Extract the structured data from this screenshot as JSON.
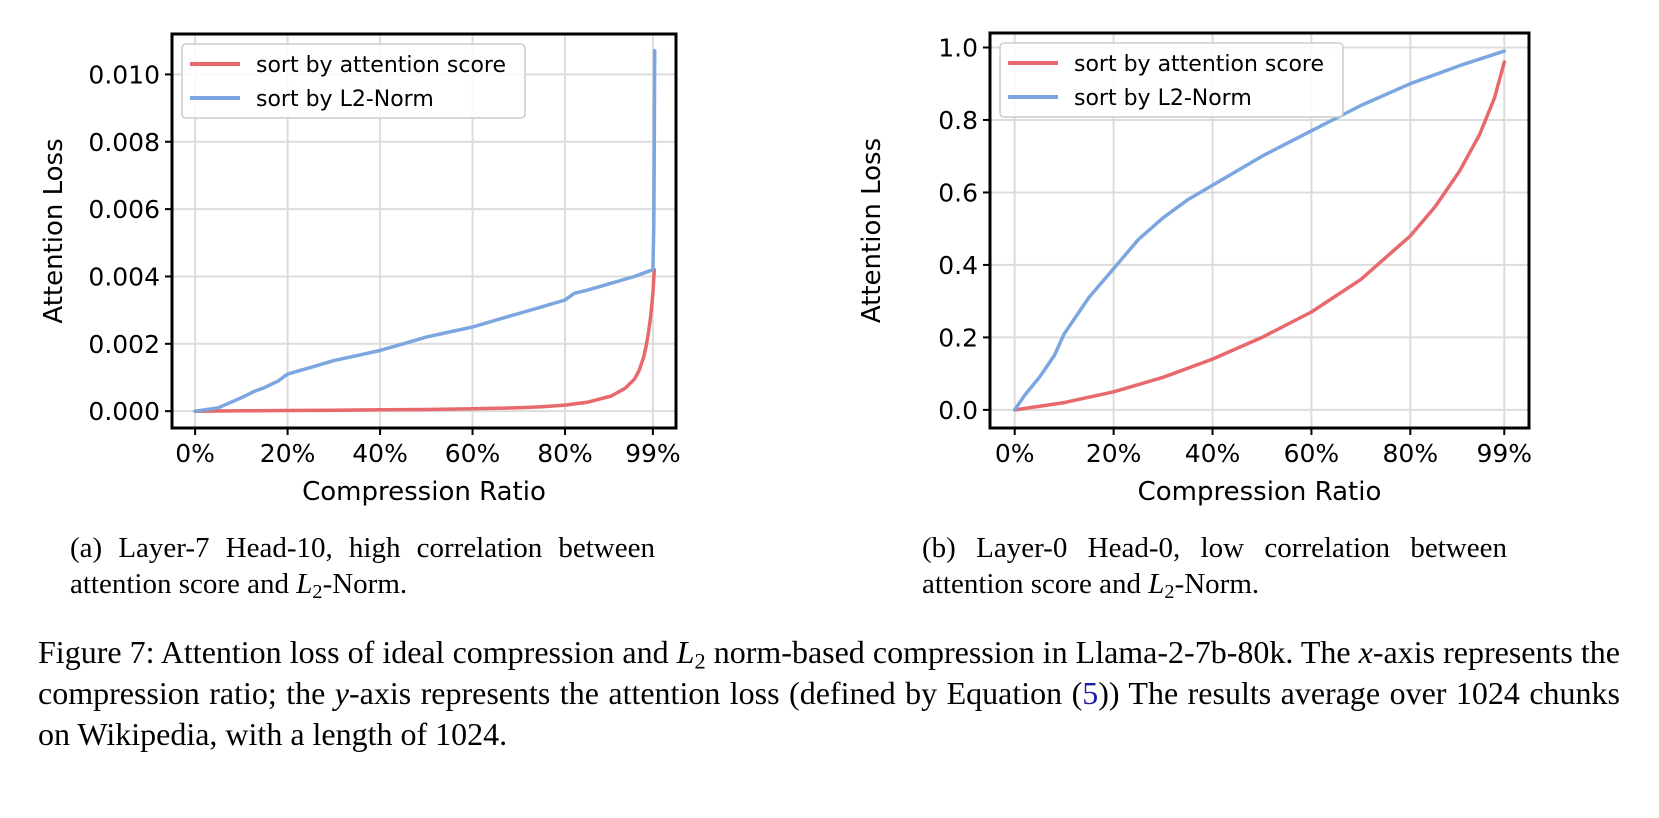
{
  "chart_data": [
    {
      "type": "line",
      "xlabel": "Compression Ratio",
      "ylabel": "Attention Loss",
      "x_tick_labels": [
        "0%",
        "20%",
        "40%",
        "60%",
        "80%",
        "99%"
      ],
      "x_ticks": [
        0,
        20,
        40,
        60,
        80,
        99
      ],
      "y_tick_labels": [
        "0.000",
        "0.002",
        "0.004",
        "0.006",
        "0.008",
        "0.010"
      ],
      "y_ticks": [
        0,
        0.002,
        0.004,
        0.006,
        0.008,
        0.01
      ],
      "xlim": [
        -5,
        104
      ],
      "ylim": [
        -0.0005,
        0.0112
      ],
      "grid": true,
      "legend_position": "top-left",
      "series": [
        {
          "name": "sort by attention score",
          "color": "#e8696b",
          "x": [
            0,
            10,
            20,
            30,
            40,
            50,
            60,
            70,
            75,
            80,
            85,
            90,
            93,
            95,
            96,
            97,
            97.5,
            98,
            98.5,
            99,
            99.3
          ],
          "y": [
            0,
            1e-05,
            2e-05,
            3e-05,
            4e-05,
            5e-05,
            7e-05,
            0.0001,
            0.00013,
            0.00018,
            0.00027,
            0.00045,
            0.00068,
            0.00095,
            0.0012,
            0.0016,
            0.0019,
            0.0023,
            0.0028,
            0.0035,
            0.0042
          ]
        },
        {
          "name": "sort by L2-Norm",
          "color": "#7ba6e0",
          "x": [
            0,
            5,
            10,
            13,
            15,
            18,
            20,
            25,
            30,
            35,
            40,
            45,
            50,
            55,
            60,
            65,
            70,
            75,
            80,
            82,
            85,
            90,
            95,
            99,
            99.2,
            99.3,
            99.4
          ],
          "y": [
            0,
            0.0001,
            0.0004,
            0.0006,
            0.0007,
            0.0009,
            0.0011,
            0.0013,
            0.0015,
            0.00165,
            0.0018,
            0.002,
            0.0022,
            0.00235,
            0.0025,
            0.0027,
            0.0029,
            0.0031,
            0.0033,
            0.0035,
            0.0036,
            0.0038,
            0.004,
            0.0042,
            0.0055,
            0.008,
            0.0107
          ]
        }
      ]
    },
    {
      "type": "line",
      "xlabel": "Compression Ratio",
      "ylabel": "Attention Loss",
      "x_tick_labels": [
        "0%",
        "20%",
        "40%",
        "60%",
        "80%",
        "99%"
      ],
      "x_ticks": [
        0,
        20,
        40,
        60,
        80,
        99
      ],
      "y_tick_labels": [
        "0.0",
        "0.2",
        "0.4",
        "0.6",
        "0.8",
        "1.0"
      ],
      "y_ticks": [
        0,
        0.2,
        0.4,
        0.6,
        0.8,
        1.0
      ],
      "xlim": [
        -5,
        104
      ],
      "ylim": [
        -0.05,
        1.04
      ],
      "grid": true,
      "legend_position": "top-left",
      "series": [
        {
          "name": "sort by attention score",
          "color": "#e8696b",
          "x": [
            0,
            10,
            20,
            30,
            40,
            50,
            60,
            70,
            80,
            85,
            90,
            94,
            97,
            99
          ],
          "y": [
            0,
            0.02,
            0.05,
            0.09,
            0.14,
            0.2,
            0.27,
            0.36,
            0.48,
            0.56,
            0.66,
            0.76,
            0.86,
            0.96
          ]
        },
        {
          "name": "sort by L2-Norm",
          "color": "#7ba6e0",
          "x": [
            0,
            2,
            5,
            8,
            10,
            15,
            20,
            25,
            30,
            35,
            40,
            50,
            60,
            70,
            80,
            90,
            99
          ],
          "y": [
            0,
            0.04,
            0.09,
            0.15,
            0.21,
            0.31,
            0.39,
            0.47,
            0.53,
            0.58,
            0.62,
            0.7,
            0.77,
            0.84,
            0.9,
            0.95,
            0.99
          ]
        }
      ]
    }
  ],
  "captions": {
    "a": {
      "prefix": "(a) Layer-7 Head-10, high correlation between attention score and ",
      "var": "L",
      "sub": "2",
      "suffix": "-Norm."
    },
    "b": {
      "prefix": "(b) Layer-0 Head-0, low correlation between attention score and ",
      "var": "L",
      "sub": "2",
      "suffix": "-Norm."
    },
    "figure": {
      "part1": "Figure 7: Attention loss of ideal compression and ",
      "L": "L",
      "L_sub": "2",
      "part2": " norm-based compression in Llama-2-7b-80k. The ",
      "x": "x",
      "part3": "-axis represents the compression ratio; the ",
      "y": "y",
      "part4": "-axis represents the attention loss (defined by Equation (",
      "eq": "5",
      "part5": ")) The results average over 1024 chunks on Wikipedia, with a length of 1024."
    }
  }
}
